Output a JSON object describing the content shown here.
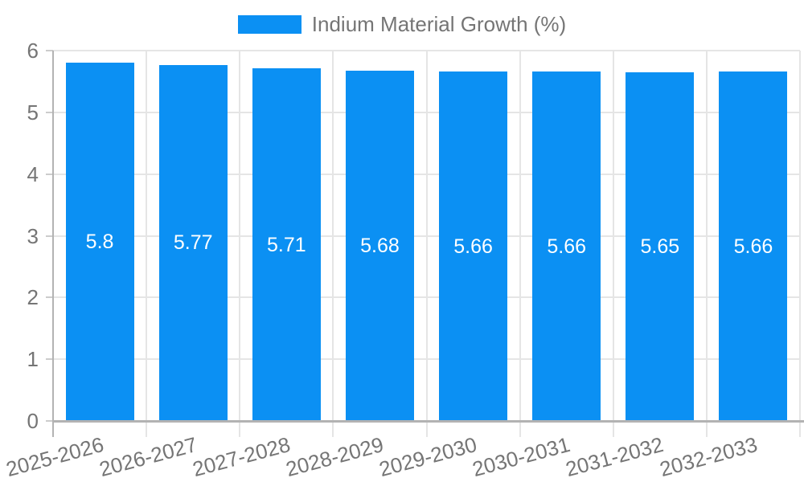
{
  "legend": {
    "label": "Indium Material Growth (%)",
    "color": "#0b90f3"
  },
  "colors": {
    "bar": "#0b90f3",
    "grid": "#e5e5e5",
    "axis": "#b3b3b3",
    "tick": "#cccccc",
    "text": "#757575",
    "value_text": "#ffffff",
    "background": "#ffffff"
  },
  "chart_data": {
    "type": "bar",
    "title": "Indium Material Growth (%)",
    "categories": [
      "2025-2026",
      "2026-2027",
      "2027-2028",
      "2028-2029",
      "2029-2030",
      "2030-2031",
      "2031-2032",
      "2032-2033"
    ],
    "values": [
      5.8,
      5.77,
      5.71,
      5.68,
      5.66,
      5.66,
      5.65,
      5.66
    ],
    "value_labels": [
      "5.8",
      "5.77",
      "5.71",
      "5.68",
      "5.66",
      "5.66",
      "5.65",
      "5.66"
    ],
    "series_name": "Indium Material Growth (%)",
    "xlabel": "",
    "ylabel": "",
    "ylim": [
      0,
      6
    ],
    "yticks": [
      "0",
      "1",
      "2",
      "3",
      "4",
      "5",
      "6"
    ],
    "grid": true,
    "legend_position": "top",
    "bar_color": "#0b90f3",
    "value_label_color": "#ffffff",
    "x_label_rotation_deg": -15
  }
}
